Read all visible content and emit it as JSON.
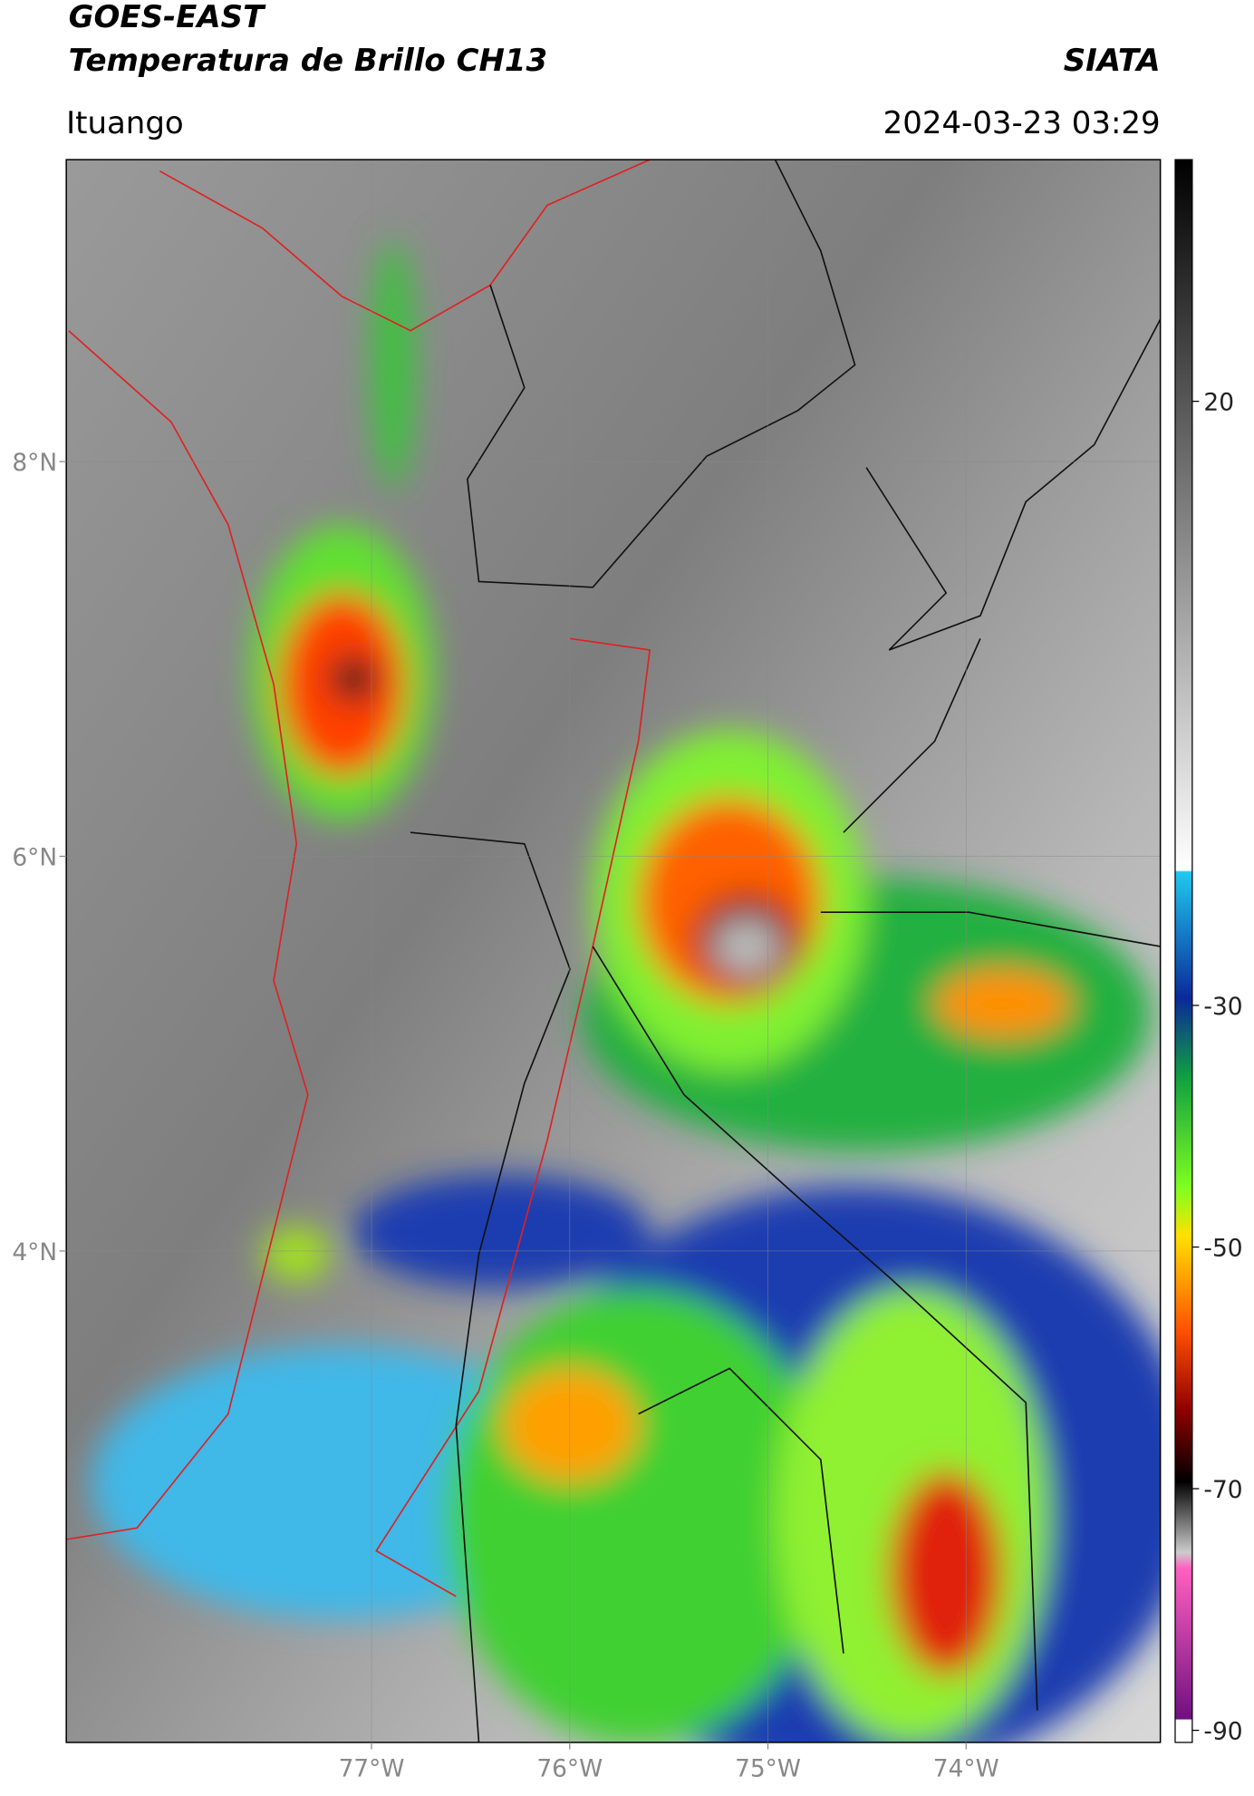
{
  "header": {
    "title": "GOES-EAST",
    "subtitle": "Temperatura de Brillo CH13",
    "source": "SIATA",
    "location": "Ituango",
    "datetime": "2024-03-23 03:29"
  },
  "map": {
    "xlim": [
      -78.54,
      -73.02
    ],
    "ylim": [
      1.51,
      9.53
    ],
    "xticks": [
      {
        "value": -77,
        "label": "77°W"
      },
      {
        "value": -76,
        "label": "76°W"
      },
      {
        "value": -75,
        "label": "75°W"
      },
      {
        "value": -74,
        "label": "74°W"
      }
    ],
    "yticks": [
      {
        "value": 8,
        "label": "8°N"
      },
      {
        "value": 6,
        "label": "6°N"
      },
      {
        "value": 4,
        "label": "4°N"
      }
    ],
    "grid": true
  },
  "colorbar": {
    "lim": [
      -91,
      40
    ],
    "ticks": [
      20,
      -30,
      -50,
      -70,
      -90
    ]
  }
}
